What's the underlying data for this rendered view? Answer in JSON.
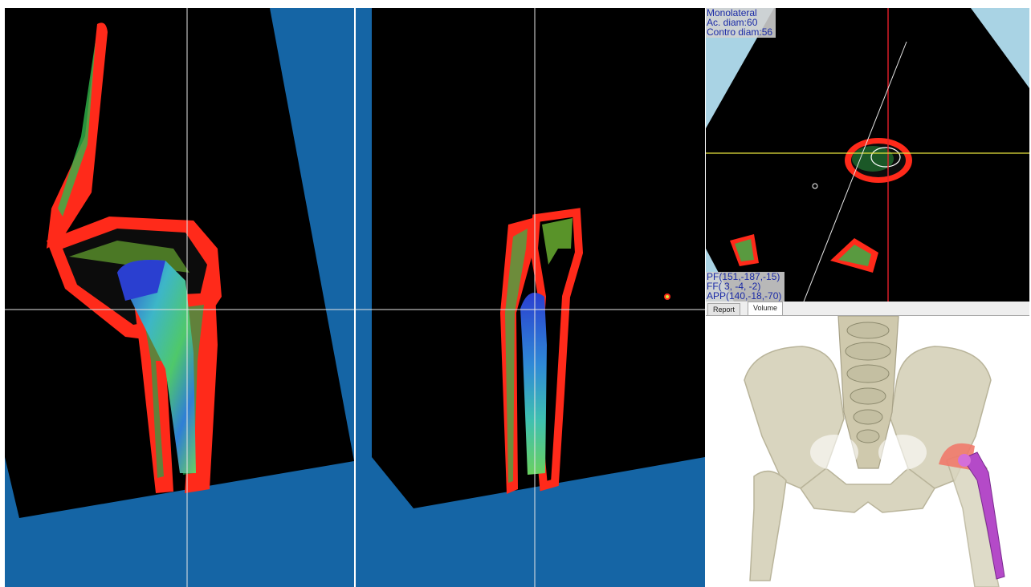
{
  "axial_view": {
    "overlay_top": [
      "Monolateral",
      "Ac. diam:60",
      "Contro diam:56"
    ],
    "overlay_bottom": [
      "PF(151,-187,-15)",
      "FF( 3, -4, -2)",
      "APP(140,-18,-70)"
    ]
  },
  "panel": {
    "tabs": [
      {
        "label": "Report",
        "active": false
      },
      {
        "label": "Volume",
        "active": true
      }
    ]
  },
  "colors": {
    "background_blue": "#1565a5",
    "axial_background": "#a9d3e4",
    "cortical_bone": "#ff2a1a",
    "crosshair": "#e6e6e6",
    "axial_crosshair_v": "#e8202a",
    "axial_crosshair_h": "#e6e43c",
    "cup": "#f07a6a",
    "stem": "#b44ac8",
    "pelvis": "#d9d5bf"
  }
}
